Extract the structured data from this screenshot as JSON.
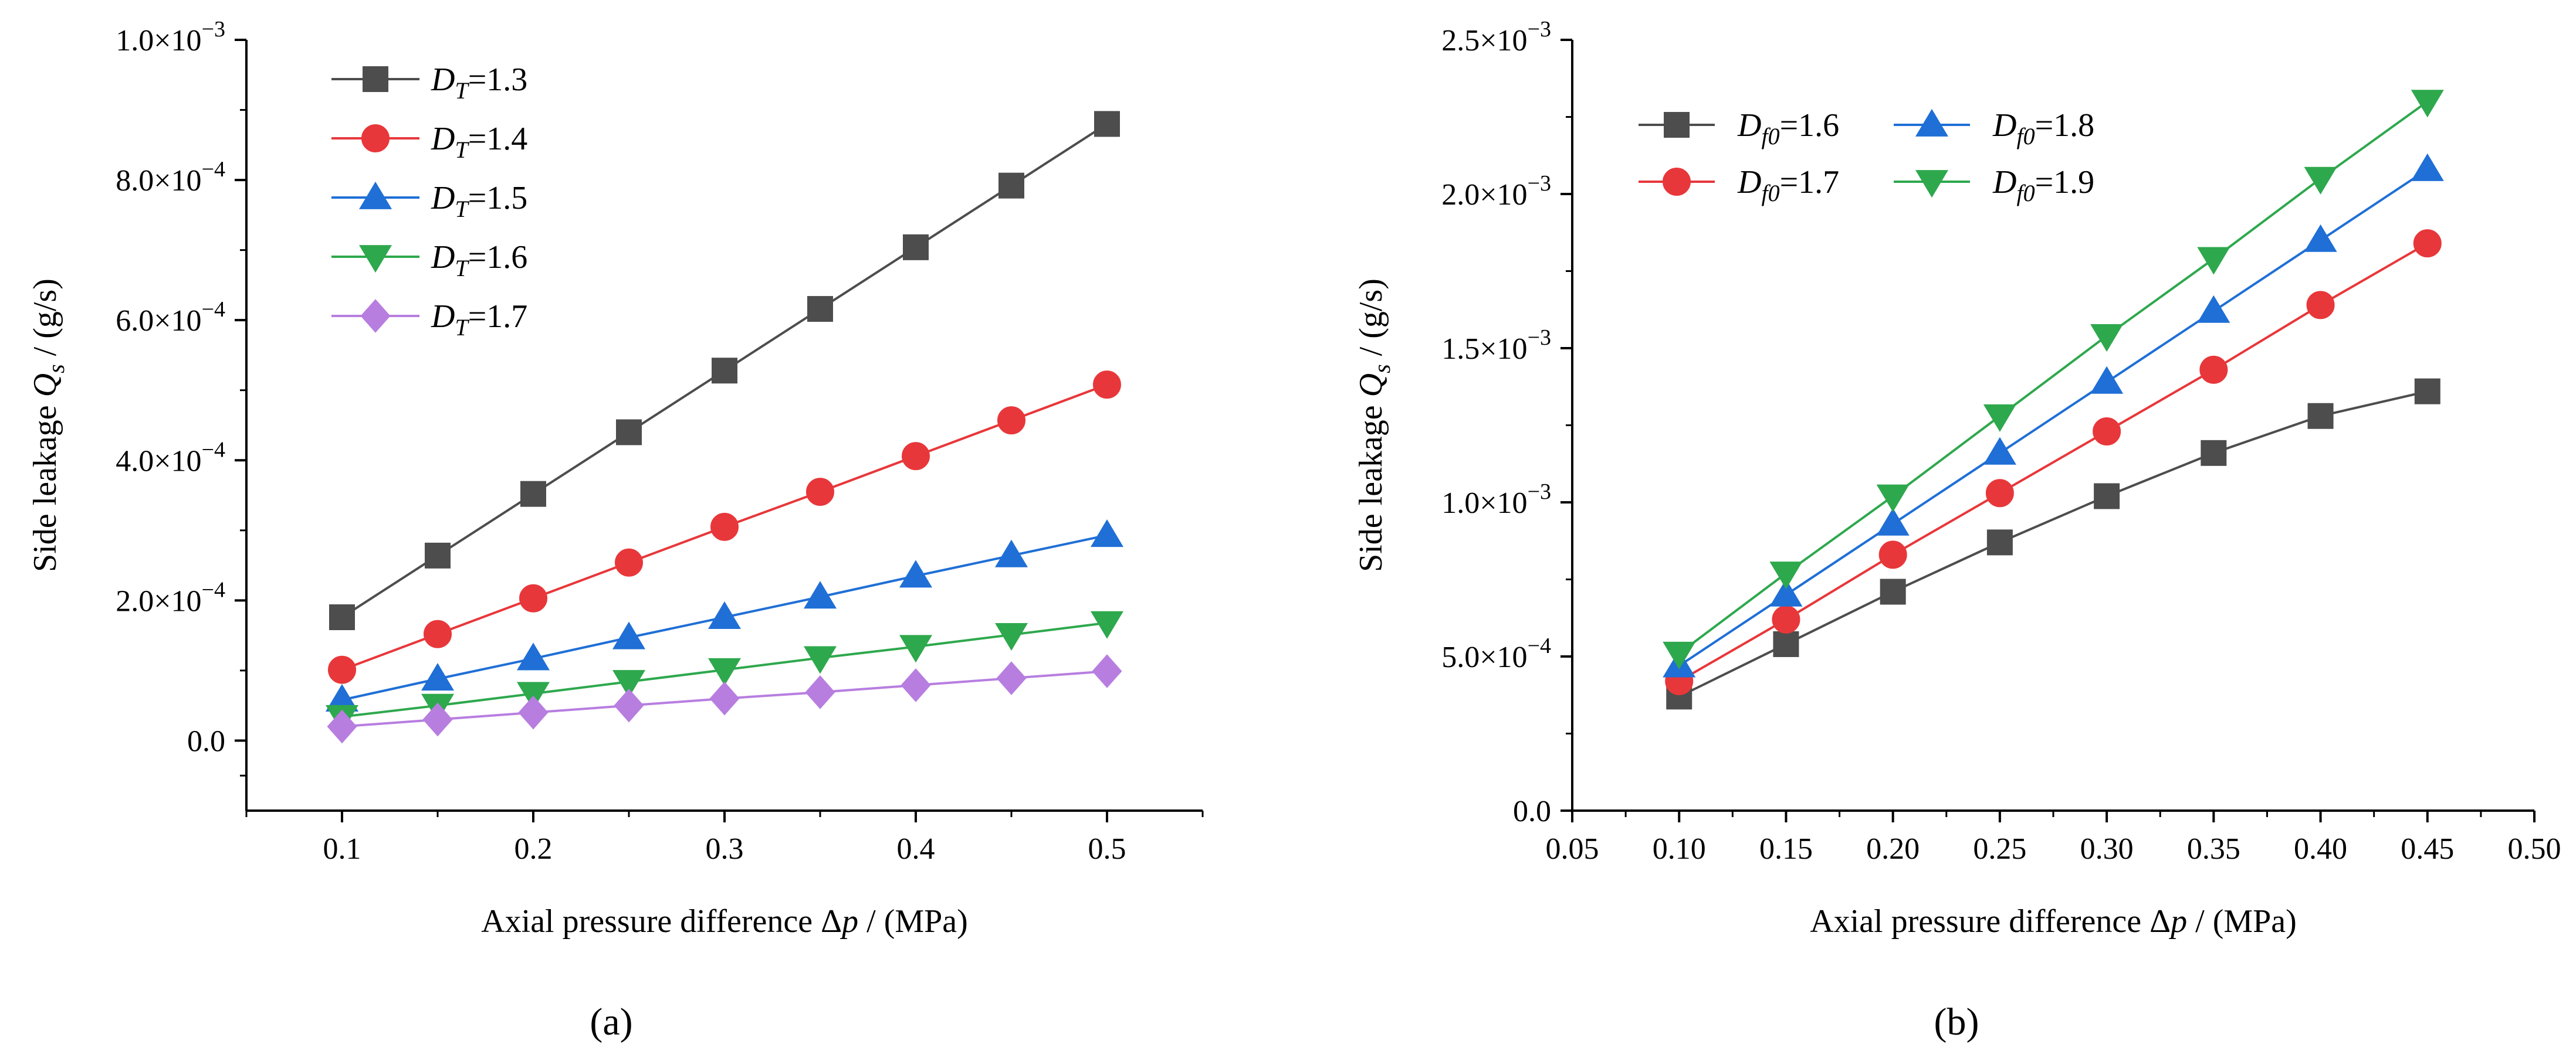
{
  "chart_data": [
    {
      "panel_label": "(a)",
      "type": "line",
      "xlabel": {
        "pre": "Axial pressure difference Δ",
        "var": "p",
        "post": " / (MPa)"
      },
      "ylabel": {
        "pre": "Side leakage ",
        "var": "Q",
        "sub": "s",
        "post": " / (g/s)"
      },
      "xlim": [
        0.05,
        0.55
      ],
      "ylim": [
        -0.0001,
        0.001
      ],
      "x_ticks": [
        0.1,
        0.2,
        0.3,
        0.4,
        0.5
      ],
      "x_tick_labels": [
        "0.1",
        "0.2",
        "0.3",
        "0.4",
        "0.5"
      ],
      "y_ticks": [
        0,
        0.0002,
        0.0004,
        0.0006,
        0.0008,
        0.001
      ],
      "y_tick_labels": [
        {
          "mant": "0.0",
          "exp": ""
        },
        {
          "mant": "2.0×10",
          "exp": "−4"
        },
        {
          "mant": "4.0×10",
          "exp": "−4"
        },
        {
          "mant": "6.0×10",
          "exp": "−4"
        },
        {
          "mant": "8.0×10",
          "exp": "−4"
        },
        {
          "mant": "1.0×10",
          "exp": "−3"
        }
      ],
      "legend_position": "top-left",
      "x": [
        0.1,
        0.15,
        0.2,
        0.25,
        0.3,
        0.35,
        0.4,
        0.45,
        0.5
      ],
      "series": [
        {
          "name": {
            "sym": "D",
            "sub": "T",
            "val": "=1.3"
          },
          "color": "#4d4d4d",
          "marker": "square",
          "values": [
            0.000176,
            0.000264,
            0.000352,
            0.00044,
            0.000528,
            0.000616,
            0.000704,
            0.000792,
            0.00088
          ]
        },
        {
          "name": {
            "sym": "D",
            "sub": "T",
            "val": "=1.4"
          },
          "color": "#e8373a",
          "marker": "circle",
          "values": [
            0.000101,
            0.000152,
            0.000203,
            0.000254,
            0.000305,
            0.000355,
            0.000406,
            0.000457,
            0.000508
          ]
        },
        {
          "name": {
            "sym": "D",
            "sub": "T",
            "val": "=1.5"
          },
          "color": "#1f6fd6",
          "marker": "triangle-up",
          "values": [
            5.8e-05,
            8.8e-05,
            0.000117,
            0.000147,
            0.000176,
            0.000205,
            0.000235,
            0.000264,
            0.000293
          ]
        },
        {
          "name": {
            "sym": "D",
            "sub": "T",
            "val": "=1.6"
          },
          "color": "#2ea84d",
          "marker": "triangle-down",
          "values": [
            3.4e-05,
            5e-05,
            6.7e-05,
            8.4e-05,
            0.000101,
            0.000118,
            0.000134,
            0.000151,
            0.000168
          ]
        },
        {
          "name": {
            "sym": "D",
            "sub": "T",
            "val": "=1.7"
          },
          "color": "#b77ee0",
          "marker": "diamond",
          "values": [
            2e-05,
            3e-05,
            4e-05,
            5e-05,
            6e-05,
            6.9e-05,
            7.9e-05,
            8.9e-05,
            9.9e-05
          ]
        }
      ]
    },
    {
      "panel_label": "(b)",
      "type": "line",
      "xlabel": {
        "pre": "Axial pressure difference Δ",
        "var": "p",
        "post": " / (MPa)"
      },
      "ylabel": {
        "pre": "Side leakage ",
        "var": "Q",
        "sub": "s",
        "post": " / (g/s)"
      },
      "xlim": [
        0.05,
        0.5
      ],
      "ylim": [
        0,
        0.0025
      ],
      "x_ticks": [
        0.05,
        0.1,
        0.15,
        0.2,
        0.25,
        0.3,
        0.35,
        0.4,
        0.45,
        0.5
      ],
      "x_tick_labels": [
        "0.05",
        "0.10",
        "0.15",
        "0.20",
        "0.25",
        "0.30",
        "0.35",
        "0.40",
        "0.45",
        "0.50"
      ],
      "y_ticks": [
        0,
        0.0005,
        0.001,
        0.0015,
        0.002,
        0.0025
      ],
      "y_tick_labels": [
        {
          "mant": "0.0",
          "exp": ""
        },
        {
          "mant": "5.0×10",
          "exp": "−4"
        },
        {
          "mant": "1.0×10",
          "exp": "−3"
        },
        {
          "mant": "1.5×10",
          "exp": "−3"
        },
        {
          "mant": "2.0×10",
          "exp": "−3"
        },
        {
          "mant": "2.5×10",
          "exp": "−3"
        }
      ],
      "legend_position": "top-left",
      "x": [
        0.1,
        0.15,
        0.2,
        0.25,
        0.3,
        0.35,
        0.4,
        0.45
      ],
      "series": [
        {
          "name": {
            "sym": "D",
            "sub": "f0",
            "val": "=1.6"
          },
          "color": "#4d4d4d",
          "marker": "square",
          "values": [
            0.00037,
            0.00054,
            0.00071,
            0.00087,
            0.00102,
            0.00116,
            0.00128,
            0.00136
          ]
        },
        {
          "name": {
            "sym": "D",
            "sub": "f0",
            "val": "=1.7"
          },
          "color": "#e8373a",
          "marker": "circle",
          "values": [
            0.00042,
            0.00062,
            0.00083,
            0.00103,
            0.00123,
            0.00143,
            0.00164,
            0.00184
          ]
        },
        {
          "name": {
            "sym": "D",
            "sub": "f0",
            "val": "=1.8"
          },
          "color": "#1f6fd6",
          "marker": "triangle-up",
          "values": [
            0.00047,
            0.0007,
            0.00093,
            0.00116,
            0.00139,
            0.00162,
            0.00185,
            0.00208
          ]
        },
        {
          "name": {
            "sym": "D",
            "sub": "f0",
            "val": "=1.9"
          },
          "color": "#2ea84d",
          "marker": "triangle-down",
          "values": [
            0.00051,
            0.00077,
            0.00102,
            0.00128,
            0.00154,
            0.00179,
            0.00205,
            0.0023
          ]
        }
      ]
    }
  ]
}
